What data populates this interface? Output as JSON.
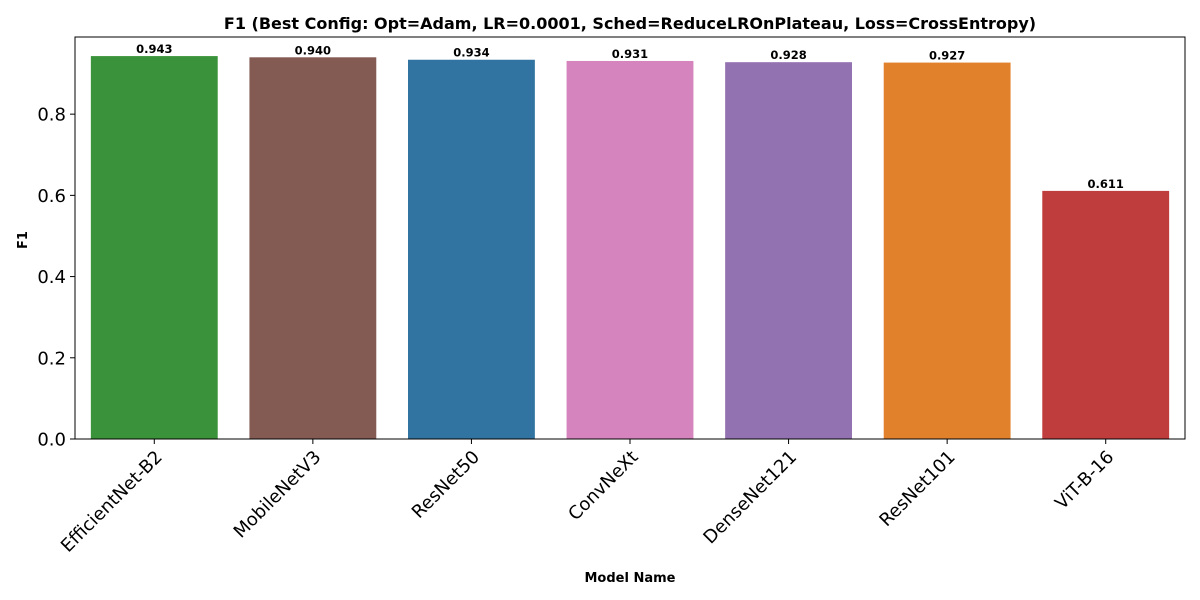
{
  "chart_data": {
    "type": "bar",
    "title": "F1 (Best Config: Opt=Adam, LR=0.0001, Sched=ReduceLROnPlateau, Loss=CrossEntropy)",
    "xlabel": "Model Name",
    "ylabel": "F1",
    "categories": [
      "EfficientNet-B2",
      "MobileNetV3",
      "ResNet50",
      "ConvNeXt",
      "DenseNet121",
      "ResNet101",
      "ViT-B-16"
    ],
    "values": [
      0.943,
      0.94,
      0.934,
      0.931,
      0.928,
      0.927,
      0.611
    ],
    "value_labels": [
      "0.943",
      "0.940",
      "0.934",
      "0.931",
      "0.928",
      "0.927",
      "0.611"
    ],
    "colors": [
      "#3a923a",
      "#845b53",
      "#3274a1",
      "#d684bd",
      "#9372b2",
      "#e1812c",
      "#c03d3e"
    ],
    "ylim": [
      0,
      0.99
    ],
    "yticks": [
      0.0,
      0.2,
      0.4,
      0.6,
      0.8
    ],
    "ytick_labels": [
      "0.0",
      "0.2",
      "0.4",
      "0.6",
      "0.8"
    ],
    "grid": false,
    "legend": "none"
  }
}
